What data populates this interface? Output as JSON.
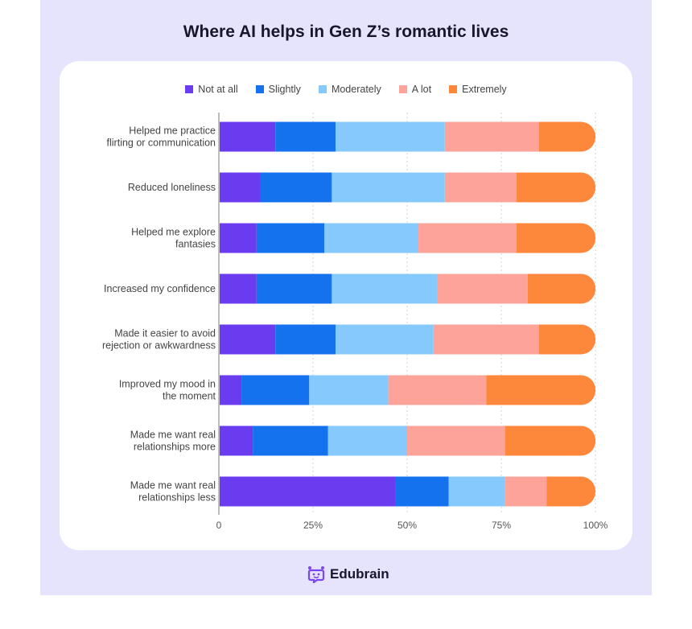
{
  "chart_data": {
    "type": "bar",
    "orientation": "horizontal",
    "stacked": true,
    "title": "Where AI helps in Gen Z’s romantic lives",
    "categories": [
      [
        "Helped me practice",
        "flirting or communication"
      ],
      [
        "Reduced loneliness"
      ],
      [
        "Helped me explore",
        "fantasies"
      ],
      [
        "Increased my confidence"
      ],
      [
        "Made it easier to avoid",
        "rejection or awkwardness"
      ],
      [
        "Improved my mood in",
        "the moment"
      ],
      [
        "Made me want real",
        "relationships more"
      ],
      [
        "Made me want real",
        "relationships less"
      ]
    ],
    "series": [
      {
        "name": "Not at all",
        "color": "#6b3bef",
        "values": [
          15,
          11,
          10,
          10,
          15,
          6,
          9,
          47
        ]
      },
      {
        "name": "Slightly",
        "color": "#1572ef",
        "values": [
          16,
          19,
          18,
          20,
          16,
          18,
          20,
          14
        ]
      },
      {
        "name": "Moderately",
        "color": "#86c9fd",
        "values": [
          29,
          30,
          25,
          28,
          26,
          21,
          21,
          15
        ]
      },
      {
        "name": "A lot",
        "color": "#fda39a",
        "values": [
          25,
          19,
          26,
          24,
          28,
          26,
          26,
          11
        ]
      },
      {
        "name": "Extremely",
        "color": "#fd873b",
        "values": [
          15,
          21,
          21,
          18,
          15,
          29,
          24,
          13
        ]
      }
    ],
    "xlim": [
      0,
      100
    ],
    "xticks": [
      "0",
      "25%",
      "50%",
      "75%",
      "100%"
    ],
    "grid": true,
    "legend": "top"
  },
  "brand": {
    "name": "Edubrain",
    "color": "#7b46f0"
  }
}
